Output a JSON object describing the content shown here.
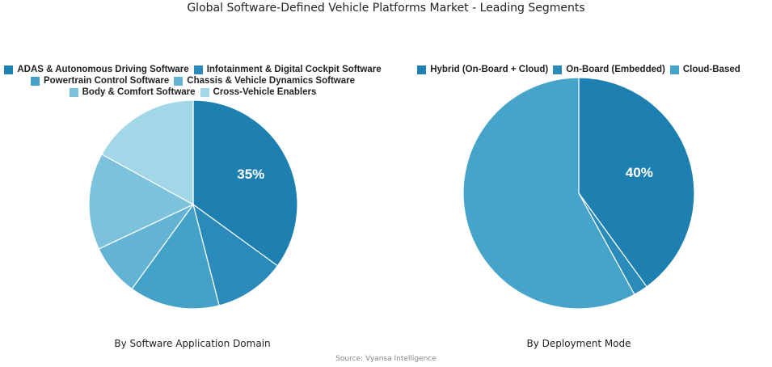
{
  "title": "Global Software-Defined Vehicle Platforms Market - Leading Segments",
  "source": "Source: Vyansa Intelligence",
  "chart_data": [
    {
      "type": "pie",
      "subtitle": "By Software Application Domain",
      "categories": [
        "ADAS & Autonomous Driving Software",
        "Infotainment & Digital Cockpit Software",
        "Powertrain Control Software",
        "Chassis & Vehicle Dynamics Software",
        "Body & Comfort Software",
        "Cross-Vehicle Enablers"
      ],
      "values": [
        35,
        11,
        14,
        8,
        15,
        17
      ],
      "labels": [
        "35%",
        "",
        "",
        "",
        "",
        ""
      ],
      "colors": [
        "#1d80b0",
        "#2a8bbb",
        "#44a2c8",
        "#62b3d4",
        "#7dc2dc",
        "#a2d7e7"
      ],
      "legend_rows": [
        [
          0,
          1
        ],
        [
          2,
          3
        ],
        [
          4,
          5
        ]
      ]
    },
    {
      "type": "pie",
      "subtitle": "By Deployment Mode",
      "categories": [
        "Hybrid (On-Board + Cloud)",
        "On-Board (Embedded)",
        "Cloud-Based"
      ],
      "values": [
        40,
        2,
        58
      ],
      "labels": [
        "40%",
        "",
        ""
      ],
      "colors": [
        "#1d80b0",
        "#2a8bbb",
        "#46a3c9"
      ],
      "legend_rows": [
        [
          0,
          1,
          2
        ]
      ]
    }
  ]
}
